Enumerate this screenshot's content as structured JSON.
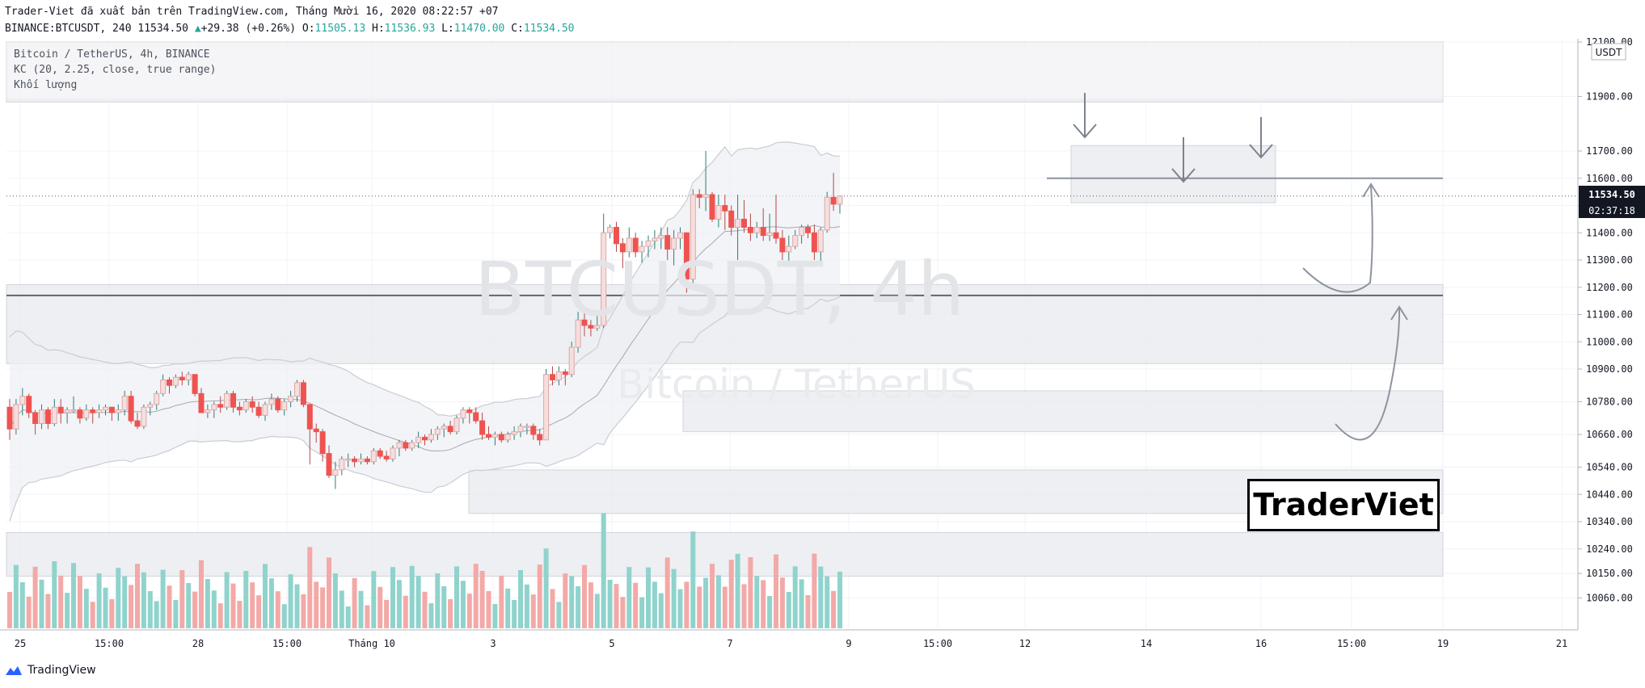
{
  "header": {
    "published": "Trader-Viet đã xuất bản trên TradingView.com, Tháng Mười 16, 2020 08:22:57 +07",
    "symbol_line": "BINANCE:BTCUSDT, 240",
    "last": "11534.50",
    "change": "+29.38 (+0.26%)",
    "o_label": "O:",
    "o_value": "11505.13",
    "h_label": "H:",
    "h_value": "11536.93",
    "l_label": "L:",
    "l_value": "11470.00",
    "c_label": "C:",
    "c_value": "11534.50"
  },
  "legend": {
    "line1": "Bitcoin / TetherUS, 4h, BINANCE",
    "line2": "KC (20, 2.25, close, true range)",
    "line3": "Khối lượng"
  },
  "watermark": {
    "symbol": "BTCUSDT, 4h",
    "name": "Bitcoin / TetherUS"
  },
  "badge": "TraderViet",
  "footer": {
    "brand": "TradingView"
  },
  "price_axis": {
    "currency_label": "USDT",
    "last_price_label": "11534.50",
    "countdown_label": "02:37:18"
  },
  "colors": {
    "up": "#26a69a",
    "down": "#ef5350",
    "up_volume": "#8fd3cc",
    "down_volume": "#f3a9a7",
    "zone": "#e8eaee",
    "band": "#c9ccd3"
  },
  "chart_data": {
    "type": "candlestick",
    "title": "BTCUSDT, 4h",
    "y_tick_values": [
      12100,
      11900,
      11700,
      11600,
      11500,
      11400,
      11300,
      11200,
      11100,
      11000,
      10900,
      10780,
      10660,
      10540,
      10440,
      10340,
      10240,
      10150,
      10060
    ],
    "y_tick_labels": [
      "12100.00",
      "11900.00",
      "11700.00",
      "11600.00",
      "11500.00",
      "11400.00",
      "11300.00",
      "11200.00",
      "11100.00",
      "11000.00",
      "10900.00",
      "10780.00",
      "10660.00",
      "10540.00",
      "10440.00",
      "10340.00",
      "10240.00",
      "10150.00",
      "10060.00"
    ],
    "x_tick_labels": [
      "25",
      "15:00",
      "28",
      "15:00",
      "Tháng 10",
      "3",
      "5",
      "7",
      "9",
      "15:00",
      "12",
      "14",
      "16",
      "15:00",
      "19",
      "21"
    ],
    "ohlc": [
      [
        10760,
        10790,
        10640,
        10680
      ],
      [
        10680,
        10790,
        10660,
        10770
      ],
      [
        10770,
        10830,
        10730,
        10800
      ],
      [
        10800,
        10810,
        10720,
        10740
      ],
      [
        10740,
        10750,
        10660,
        10700
      ],
      [
        10700,
        10770,
        10680,
        10750
      ],
      [
        10750,
        10760,
        10680,
        10700
      ],
      [
        10700,
        10790,
        10690,
        10760
      ],
      [
        10760,
        10790,
        10700,
        10740
      ],
      [
        10740,
        10760,
        10700,
        10750
      ],
      [
        10750,
        10800,
        10740,
        10750
      ],
      [
        10750,
        10760,
        10700,
        10720
      ],
      [
        10720,
        10770,
        10710,
        10750
      ],
      [
        10750,
        10760,
        10700,
        10740
      ],
      [
        10740,
        10770,
        10720,
        10750
      ],
      [
        10750,
        10770,
        10730,
        10760
      ],
      [
        10760,
        10760,
        10710,
        10740
      ],
      [
        10740,
        10770,
        10710,
        10750
      ],
      [
        10750,
        10820,
        10730,
        10800
      ],
      [
        10800,
        10820,
        10700,
        10710
      ],
      [
        10710,
        10740,
        10680,
        10690
      ],
      [
        10690,
        10770,
        10680,
        10760
      ],
      [
        10760,
        10780,
        10730,
        10770
      ],
      [
        10770,
        10820,
        10750,
        10810
      ],
      [
        10810,
        10880,
        10800,
        10860
      ],
      [
        10860,
        10870,
        10810,
        10840
      ],
      [
        10840,
        10880,
        10830,
        10870
      ],
      [
        10870,
        10890,
        10840,
        10860
      ],
      [
        10860,
        10890,
        10840,
        10880
      ],
      [
        10880,
        10880,
        10800,
        10810
      ],
      [
        10810,
        10830,
        10740,
        10740
      ],
      [
        10740,
        10770,
        10720,
        10750
      ],
      [
        10750,
        10780,
        10720,
        10770
      ],
      [
        10770,
        10800,
        10740,
        10760
      ],
      [
        10760,
        10820,
        10750,
        10810
      ],
      [
        10810,
        10820,
        10740,
        10760
      ],
      [
        10760,
        10780,
        10730,
        10750
      ],
      [
        10750,
        10790,
        10740,
        10780
      ],
      [
        10780,
        10800,
        10740,
        10760
      ],
      [
        10760,
        10780,
        10720,
        10730
      ],
      [
        10730,
        10780,
        10710,
        10770
      ],
      [
        10770,
        10810,
        10750,
        10790
      ],
      [
        10790,
        10800,
        10740,
        10750
      ],
      [
        10750,
        10790,
        10730,
        10780
      ],
      [
        10780,
        10820,
        10760,
        10800
      ],
      [
        10800,
        10860,
        10780,
        10850
      ],
      [
        10850,
        10860,
        10760,
        10770
      ],
      [
        10770,
        10770,
        10550,
        10680
      ],
      [
        10680,
        10700,
        10630,
        10670
      ],
      [
        10670,
        10680,
        10560,
        10590
      ],
      [
        10590,
        10620,
        10500,
        10510
      ],
      [
        10510,
        10560,
        10460,
        10530
      ],
      [
        10530,
        10580,
        10510,
        10570
      ],
      [
        10570,
        10590,
        10540,
        10570
      ],
      [
        10570,
        10580,
        10540,
        10560
      ],
      [
        10560,
        10590,
        10550,
        10570
      ],
      [
        10570,
        10580,
        10550,
        10560
      ],
      [
        10560,
        10610,
        10550,
        10600
      ],
      [
        10600,
        10610,
        10570,
        10580
      ],
      [
        10580,
        10600,
        10560,
        10570
      ],
      [
        10570,
        10620,
        10560,
        10610
      ],
      [
        10610,
        10640,
        10580,
        10630
      ],
      [
        10630,
        10640,
        10600,
        10610
      ],
      [
        10610,
        10640,
        10600,
        10630
      ],
      [
        10630,
        10670,
        10610,
        10650
      ],
      [
        10650,
        10660,
        10620,
        10640
      ],
      [
        10640,
        10680,
        10630,
        10660
      ],
      [
        10660,
        10690,
        10640,
        10680
      ],
      [
        10680,
        10700,
        10650,
        10690
      ],
      [
        10690,
        10710,
        10660,
        10670
      ],
      [
        10670,
        10730,
        10660,
        10720
      ],
      [
        10720,
        10760,
        10700,
        10750
      ],
      [
        10750,
        10760,
        10700,
        10740
      ],
      [
        10740,
        10760,
        10700,
        10710
      ],
      [
        10710,
        10740,
        10640,
        10660
      ],
      [
        10660,
        10690,
        10640,
        10650
      ],
      [
        10650,
        10670,
        10620,
        10660
      ],
      [
        10660,
        10670,
        10630,
        10640
      ],
      [
        10640,
        10670,
        10630,
        10660
      ],
      [
        10660,
        10690,
        10640,
        10670
      ],
      [
        10670,
        10700,
        10650,
        10690
      ],
      [
        10690,
        10700,
        10660,
        10690
      ],
      [
        10690,
        10700,
        10640,
        10660
      ],
      [
        10660,
        10680,
        10620,
        10640
      ],
      [
        10640,
        10900,
        10640,
        10880
      ],
      [
        10880,
        10910,
        10840,
        10860
      ],
      [
        10860,
        10910,
        10840,
        10890
      ],
      [
        10890,
        10900,
        10840,
        10880
      ],
      [
        10880,
        11000,
        10870,
        10980
      ],
      [
        10980,
        11110,
        10960,
        11080
      ],
      [
        11080,
        11110,
        11020,
        11060
      ],
      [
        11060,
        11080,
        11020,
        11050
      ],
      [
        11050,
        11110,
        11040,
        11060
      ],
      [
        11060,
        11470,
        11050,
        11400
      ],
      [
        11400,
        11430,
        11380,
        11420
      ],
      [
        11420,
        11440,
        11330,
        11360
      ],
      [
        11360,
        11380,
        11270,
        11330
      ],
      [
        11330,
        11420,
        11310,
        11380
      ],
      [
        11380,
        11400,
        11310,
        11330
      ],
      [
        11330,
        11370,
        11290,
        11350
      ],
      [
        11350,
        11390,
        11310,
        11370
      ],
      [
        11370,
        11410,
        11340,
        11380
      ],
      [
        11380,
        11420,
        11340,
        11390
      ],
      [
        11390,
        11420,
        11300,
        11340
      ],
      [
        11340,
        11410,
        11280,
        11380
      ],
      [
        11380,
        11420,
        11340,
        11400
      ],
      [
        11400,
        11400,
        11180,
        11230
      ],
      [
        11230,
        11560,
        11200,
        11540
      ],
      [
        11540,
        11560,
        11490,
        11530
      ],
      [
        11530,
        11700,
        11480,
        11540
      ],
      [
        11540,
        11550,
        11440,
        11450
      ],
      [
        11450,
        11540,
        11420,
        11500
      ],
      [
        11500,
        11540,
        11410,
        11480
      ],
      [
        11480,
        11500,
        11390,
        11420
      ],
      [
        11420,
        11540,
        11300,
        11450
      ],
      [
        11450,
        11520,
        11400,
        11420
      ],
      [
        11420,
        11470,
        11370,
        11400
      ],
      [
        11400,
        11440,
        11380,
        11420
      ],
      [
        11420,
        11490,
        11370,
        11390
      ],
      [
        11390,
        11470,
        11370,
        11400
      ],
      [
        11400,
        11540,
        11360,
        11380
      ],
      [
        11380,
        11410,
        11300,
        11330
      ],
      [
        11330,
        11390,
        11290,
        11350
      ],
      [
        11350,
        11410,
        11340,
        11390
      ],
      [
        11390,
        11430,
        11360,
        11420
      ],
      [
        11420,
        11430,
        11380,
        11400
      ],
      [
        11400,
        11430,
        11300,
        11330
      ],
      [
        11330,
        11420,
        11290,
        11410
      ],
      [
        11410,
        11550,
        11400,
        11530
      ],
      [
        11530,
        11620,
        11480,
        11505
      ],
      [
        11505,
        11537,
        11470,
        11535
      ]
    ]
  }
}
